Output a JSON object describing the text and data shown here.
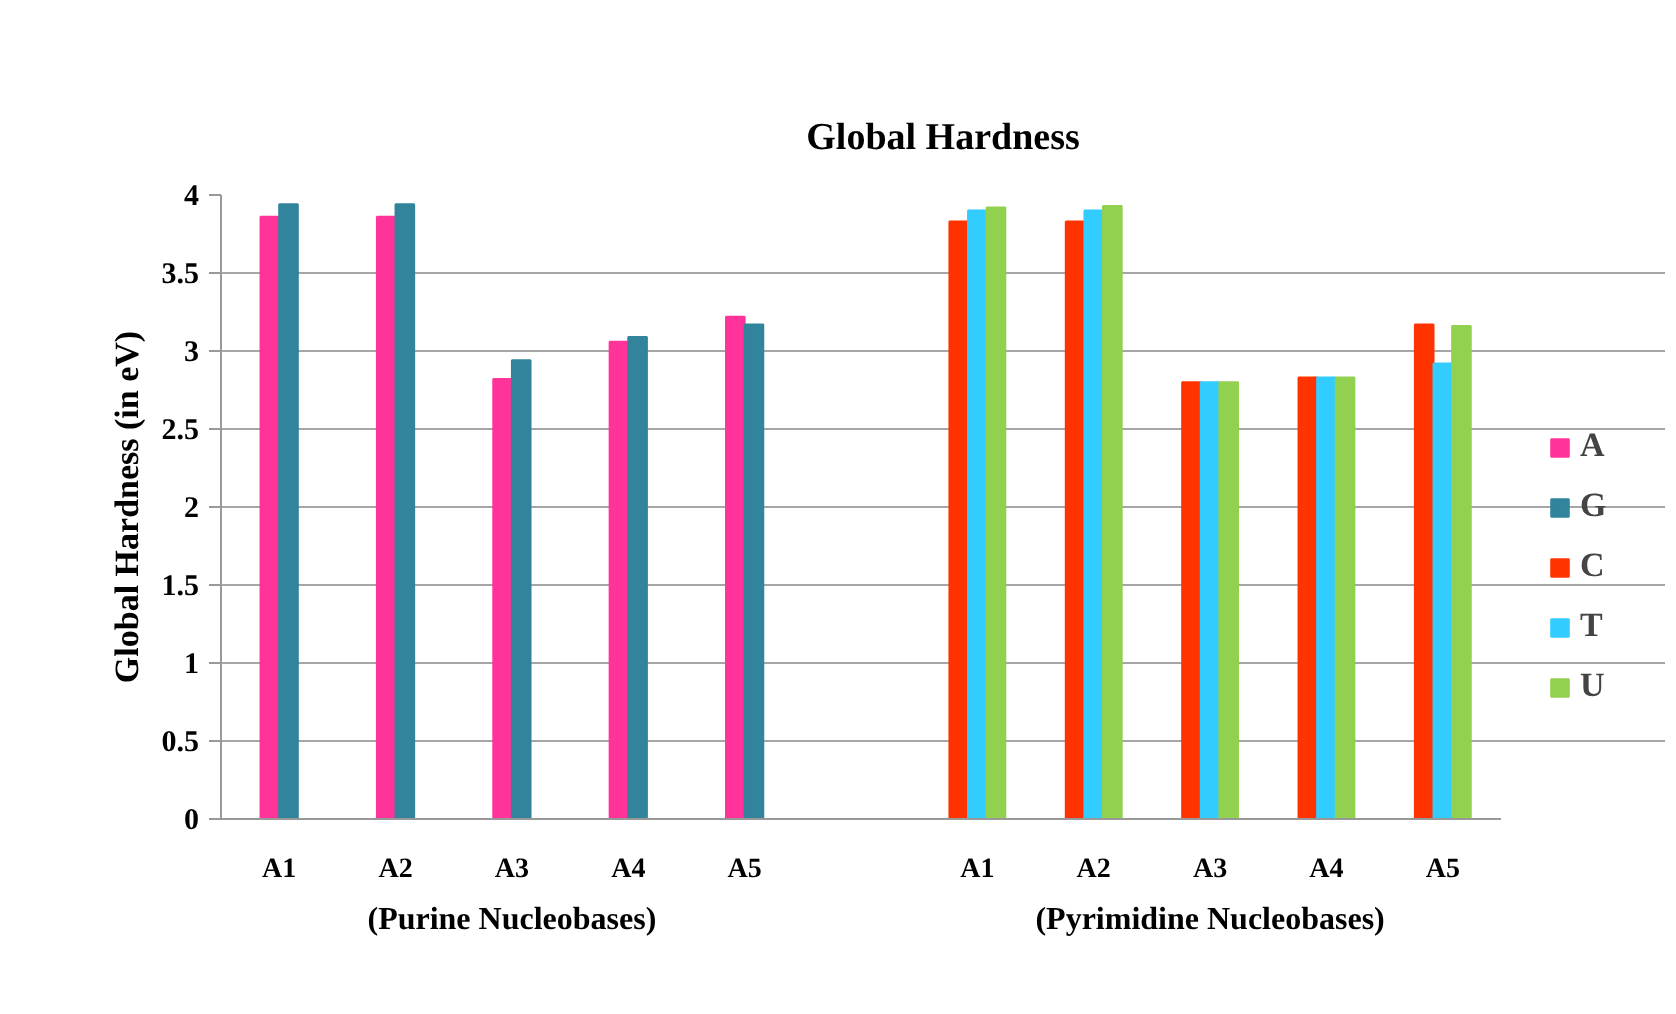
{
  "chart_data": {
    "type": "bar",
    "title": "Global Hardness",
    "ylabel": "Global Hardness (in eV)",
    "categories": [
      "A1",
      "A2",
      "A3",
      "A4",
      "A5",
      null,
      "A1",
      "A2",
      "A3",
      "A4",
      "A5"
    ],
    "series": [
      {
        "name": "A",
        "color": "#ff3399",
        "values": [
          3.86,
          3.86,
          2.82,
          3.06,
          3.22,
          null,
          null,
          null,
          null,
          null,
          null
        ]
      },
      {
        "name": "G",
        "color": "#31849b",
        "values": [
          3.94,
          3.94,
          2.94,
          3.09,
          3.17,
          null,
          null,
          null,
          null,
          null,
          null
        ]
      },
      {
        "name": "C",
        "color": "#ff3300",
        "values": [
          null,
          null,
          null,
          null,
          null,
          null,
          3.83,
          3.83,
          2.8,
          2.83,
          3.17
        ]
      },
      {
        "name": "T",
        "color": "#33ccff",
        "values": [
          null,
          null,
          null,
          null,
          null,
          null,
          3.9,
          3.9,
          2.8,
          2.83,
          2.92
        ]
      },
      {
        "name": "U",
        "color": "#92d050",
        "values": [
          null,
          null,
          null,
          null,
          null,
          null,
          3.92,
          3.93,
          2.8,
          2.83,
          3.16
        ]
      }
    ],
    "ylim": [
      0,
      4
    ],
    "yticks": [
      0,
      0.5,
      1,
      1.5,
      2,
      2.5,
      3,
      3.5,
      4
    ],
    "grid": "y",
    "legend": "right",
    "annotations": [
      "(Purine Nucleobases)",
      "(Pyrimidine Nucleobases)"
    ]
  }
}
